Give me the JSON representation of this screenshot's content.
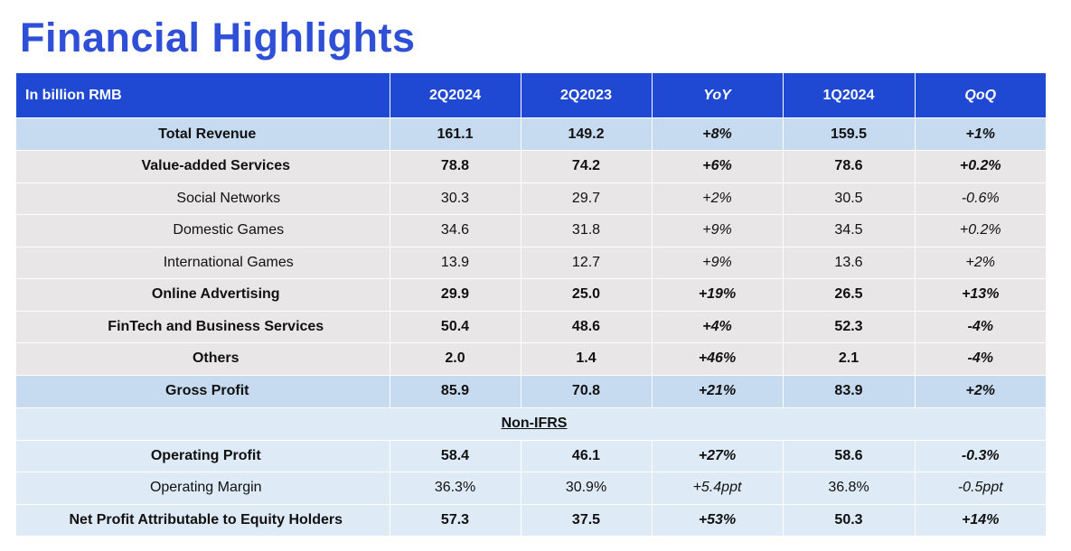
{
  "title": "Financial Highlights",
  "table": {
    "headers": [
      "In billion RMB",
      "2Q2024",
      "2Q2023",
      "YoY",
      "1Q2024",
      "QoQ"
    ],
    "non_ifrs_label": "Non-IFRS",
    "rows": [
      {
        "label": "Total Revenue",
        "values": [
          "161.1",
          "149.2",
          "+8%",
          "159.5",
          "+1%"
        ]
      },
      {
        "label": "Value-added Services",
        "values": [
          "78.8",
          "74.2",
          "+6%",
          "78.6",
          "+0.2%"
        ]
      },
      {
        "label": "Social Networks",
        "values": [
          "30.3",
          "29.7",
          "+2%",
          "30.5",
          "-0.6%"
        ]
      },
      {
        "label": "Domestic Games",
        "values": [
          "34.6",
          "31.8",
          "+9%",
          "34.5",
          "+0.2%"
        ]
      },
      {
        "label": "International Games",
        "values": [
          "13.9",
          "12.7",
          "+9%",
          "13.6",
          "+2%"
        ]
      },
      {
        "label": "Online Advertising",
        "values": [
          "29.9",
          "25.0",
          "+19%",
          "26.5",
          "+13%"
        ]
      },
      {
        "label": "FinTech and Business Services",
        "values": [
          "50.4",
          "48.6",
          "+4%",
          "52.3",
          "-4%"
        ]
      },
      {
        "label": "Others",
        "values": [
          "2.0",
          "1.4",
          "+46%",
          "2.1",
          "-4%"
        ]
      },
      {
        "label": "Gross Profit",
        "values": [
          "85.9",
          "70.8",
          "+21%",
          "83.9",
          "+2%"
        ]
      },
      {
        "label": "Operating Profit",
        "values": [
          "58.4",
          "46.1",
          "+27%",
          "58.6",
          "-0.3%"
        ]
      },
      {
        "label": "Operating Margin",
        "values": [
          "36.3%",
          "30.9%",
          "+5.4ppt",
          "36.8%",
          "-0.5ppt"
        ]
      },
      {
        "label": "Net Profit Attributable to Equity Holders",
        "values": [
          "57.3",
          "37.5",
          "+53%",
          "50.3",
          "+14%"
        ]
      }
    ]
  },
  "colors": {
    "title": "#2e4fd6",
    "header_bg": "#2049d3",
    "highlight_row": "#c6dbf0",
    "grey_row": "#e8e6e6",
    "light_blue_row": "#deeaf6"
  }
}
